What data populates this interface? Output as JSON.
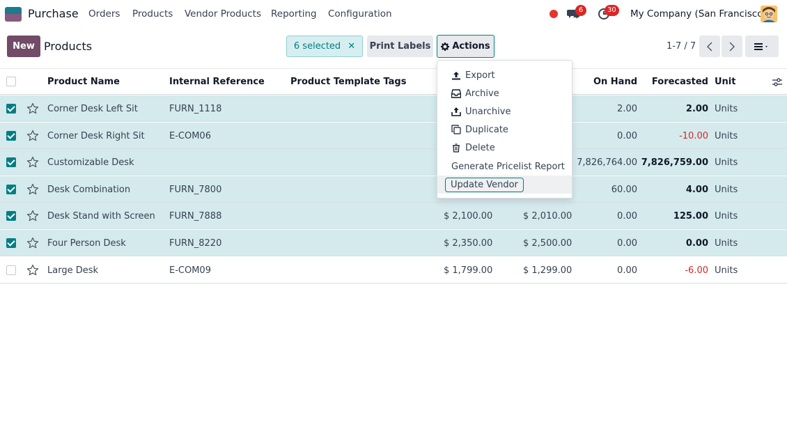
{
  "navbar": {
    "app_name": "Purchase",
    "menus": [
      "Orders",
      "Products",
      "Vendor Products",
      "Reporting",
      "Configuration"
    ],
    "chat_badge": "6",
    "activity_badge": "30",
    "company": "My Company (San Francisco)"
  },
  "control": {
    "new_label": "New",
    "breadcrumb": "Products",
    "selected_label": "6 selected",
    "clear_symbol": "✕",
    "print_label": "Print Labels",
    "actions_label": "Actions",
    "pager": "1-7 / 7"
  },
  "table": {
    "headers": {
      "name": "Product Name",
      "ref": "Internal Reference",
      "tags": "Product Template Tags",
      "onhand": "On Hand",
      "forecast": "Forecasted",
      "unit": "Unit"
    },
    "rows": [
      {
        "name": "Corner Desk Left Sit",
        "ref": "FURN_1118",
        "price": "",
        "cost": "",
        "onhand": "2.00",
        "forecast": "2.00",
        "unit": "Units",
        "selected": true,
        "negative": false
      },
      {
        "name": "Corner Desk Right Sit",
        "ref": "E-COM06",
        "price": "",
        "cost": "",
        "onhand": "0.00",
        "forecast": "-10.00",
        "unit": "Units",
        "selected": true,
        "negative": true
      },
      {
        "name": "Customizable Desk",
        "ref": "",
        "price": "",
        "cost": "",
        "onhand": "7,826,764.00",
        "forecast": "7,826,759.00",
        "unit": "Units",
        "selected": true,
        "negative": false
      },
      {
        "name": "Desk Combination",
        "ref": "FURN_7800",
        "price": "",
        "cost": "",
        "onhand": "60.00",
        "forecast": "4.00",
        "unit": "Units",
        "selected": true,
        "negative": false
      },
      {
        "name": "Desk Stand with Screen",
        "ref": "FURN_7888",
        "price": "$ 2,100.00",
        "cost": "$ 2,010.00",
        "onhand": "0.00",
        "forecast": "125.00",
        "unit": "Units",
        "selected": true,
        "negative": false
      },
      {
        "name": "Four Person Desk",
        "ref": "FURN_8220",
        "price": "$ 2,350.00",
        "cost": "$ 2,500.00",
        "onhand": "0.00",
        "forecast": "0.00",
        "unit": "Units",
        "selected": true,
        "negative": false
      },
      {
        "name": "Large Desk",
        "ref": "E-COM09",
        "price": "$ 1,799.00",
        "cost": "$ 1,299.00",
        "onhand": "0.00",
        "forecast": "-6.00",
        "unit": "Units",
        "selected": false,
        "negative": true
      }
    ]
  },
  "actions_menu": {
    "export": "Export",
    "archive": "Archive",
    "unarchive": "Unarchive",
    "duplicate": "Duplicate",
    "delete": "Delete",
    "pricelist": "Generate Pricelist Report",
    "update_vendor": "Update Vendor"
  },
  "colors": {
    "brand": "#714b67",
    "accent": "#017e84",
    "selected_row": "#d4eaed",
    "negative": "#dc2626"
  }
}
